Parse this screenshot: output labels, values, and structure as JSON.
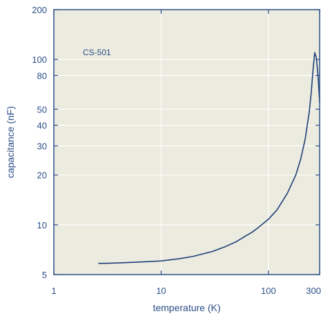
{
  "chart_data": {
    "type": "line",
    "xlabel": "temperature (K)",
    "ylabel": "capacitance (nF)",
    "xscale": "log",
    "yscale": "log",
    "xlim": [
      1,
      300
    ],
    "ylim": [
      5,
      200
    ],
    "grid": true,
    "legend": "none",
    "annotation": "CS-501",
    "x_ticks": [
      {
        "value": 1,
        "label": "1"
      },
      {
        "value": 10,
        "label": "10"
      },
      {
        "value": 100,
        "label": "100"
      },
      {
        "value": 300,
        "label": "300"
      }
    ],
    "y_ticks": [
      {
        "value": 5,
        "label": "5"
      },
      {
        "value": 10,
        "label": "10"
      },
      {
        "value": 20,
        "label": "20"
      },
      {
        "value": 30,
        "label": "30"
      },
      {
        "value": 40,
        "label": "40"
      },
      {
        "value": 50,
        "label": "50"
      },
      {
        "value": 80,
        "label": "80"
      },
      {
        "value": 100,
        "label": "100"
      },
      {
        "value": 200,
        "label": "200"
      }
    ],
    "series": [
      {
        "x": [
          2.6,
          3,
          4,
          5,
          7,
          10,
          15,
          20,
          30,
          40,
          50,
          60,
          70,
          80,
          100,
          120,
          150,
          180,
          200,
          220,
          240,
          250,
          260,
          270,
          280,
          290,
          300
        ],
        "y": [
          5.85,
          5.85,
          5.88,
          5.92,
          5.98,
          6.05,
          6.25,
          6.45,
          6.9,
          7.4,
          7.9,
          8.5,
          9.0,
          9.6,
          10.8,
          12.3,
          15.5,
          20.0,
          25.0,
          33.0,
          48.0,
          62.0,
          85.0,
          110.0,
          102.0,
          80.0,
          55.0
        ]
      }
    ],
    "colors": {
      "line": "#1d3f78",
      "plot_background": "#ecebdf",
      "grid": "#ffffff",
      "axis": "#2a4e86"
    }
  }
}
